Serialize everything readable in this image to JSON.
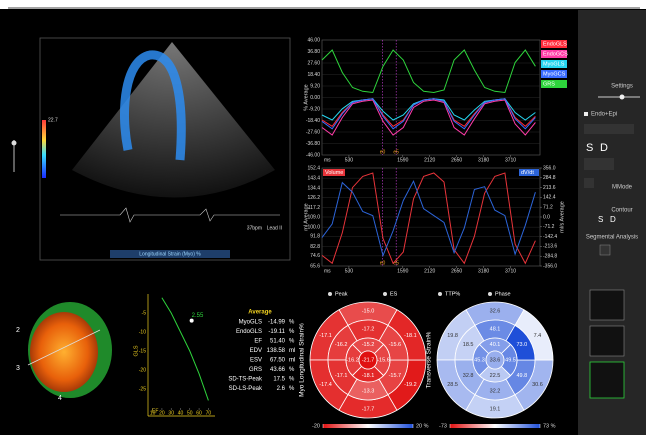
{
  "sidebar": {
    "settings": "Settings",
    "endo_epi": "Endo+Epi",
    "tool_letters": [
      "S",
      "D",
      "S",
      "D"
    ],
    "mmode": "MMode",
    "contour": "Contour",
    "segmental": "Segmental Analysis"
  },
  "echo": {
    "caption": "Longitudinal Strain (Myo) %",
    "scale_max": "22.7",
    "heart_rate": "37bpm",
    "lead": "Lead II"
  },
  "model_labels": [
    "2",
    "3",
    "4"
  ],
  "average_table": {
    "title": "Average",
    "rows": [
      [
        "MyoGLS",
        "-14.99",
        "%"
      ],
      [
        "EndoGLS",
        "-19.11",
        "%"
      ],
      [
        "EF",
        "51.40",
        "%"
      ],
      [
        "EDV",
        "138.58",
        "ml"
      ],
      [
        "ESV",
        "67.50",
        "ml"
      ],
      [
        "GRS",
        "43.66",
        "%"
      ],
      [
        "SD-TS-Peak",
        "17.5",
        "%"
      ],
      [
        "SD-LS-Peak",
        "2.6",
        "%"
      ]
    ]
  },
  "display_modes": [
    "Peak",
    "ES",
    "TTP%",
    "Phase"
  ],
  "chart_data": [
    {
      "type": "line",
      "y_label": "% Average",
      "x_unit": "ms",
      "x": [
        0,
        200,
        400,
        600,
        800,
        1000,
        1200,
        1400,
        1600,
        1800,
        2000,
        2200,
        2400,
        2600,
        2800,
        3000,
        3200,
        3400,
        3600,
        3800,
        4000,
        4200
      ],
      "xlim": [
        0,
        4290
      ],
      "xticks": [
        530,
        1590,
        2120,
        2650,
        3180,
        3710
      ],
      "ylim": [
        -46,
        46
      ],
      "yticks": [
        {
          "value": 46,
          "label": "46.00"
        },
        {
          "value": 36.8,
          "label": "36.80"
        },
        {
          "value": 27.6,
          "label": "27.60"
        },
        {
          "value": 18.4,
          "label": "18.40"
        },
        {
          "value": 9.2,
          "label": "9.20"
        },
        {
          "value": 0,
          "label": "0.00"
        },
        {
          "value": -9.2,
          "label": "-9.20"
        },
        {
          "value": -18.4,
          "label": "-18.40"
        },
        {
          "value": -27.6,
          "label": "-27.60"
        },
        {
          "value": -36.8,
          "label": "-36.80"
        },
        {
          "value": -46,
          "label": "-46.00"
        }
      ],
      "markers": [
        {
          "label": "e0",
          "x": 1190
        },
        {
          "label": "e5",
          "x": 1460
        }
      ],
      "series": [
        {
          "name": "EndoGLS",
          "color": "#ff2a3a",
          "values": [
            -18,
            -23,
            -12,
            -4,
            -2,
            -1,
            -14,
            -23,
            -18,
            -6,
            -2,
            -1,
            -3,
            -18,
            -23,
            -13,
            -4,
            -2,
            -1,
            -16,
            -23,
            -15
          ]
        },
        {
          "name": "EndoGCS",
          "color": "#ff3ca8",
          "values": [
            -24,
            -30,
            -16,
            -5,
            -3,
            -2,
            -19,
            -30,
            -24,
            -8,
            -3,
            -2,
            -4,
            -24,
            -30,
            -17,
            -5,
            -3,
            -2,
            -21,
            -30,
            -20
          ]
        },
        {
          "name": "MyoGLS",
          "color": "#26d6f0",
          "values": [
            -14,
            -18,
            -9,
            -3,
            -2,
            -1,
            -11,
            -18,
            -14,
            -5,
            -2,
            -1,
            -2,
            -14,
            -18,
            -10,
            -3,
            -2,
            -1,
            -12,
            -18,
            -12
          ]
        },
        {
          "name": "MyoGCS",
          "color": "#3a6cff",
          "values": [
            -19,
            -25,
            -13,
            -4,
            -2,
            -1,
            -15,
            -25,
            -19,
            -6,
            -2,
            -1,
            -3,
            -19,
            -25,
            -14,
            -4,
            -2,
            -1,
            -17,
            -25,
            -16
          ]
        },
        {
          "name": "GRS",
          "color": "#2ed43c",
          "values": [
            30,
            38,
            20,
            8,
            5,
            4,
            25,
            38,
            30,
            12,
            5,
            4,
            6,
            30,
            38,
            22,
            8,
            5,
            4,
            28,
            38,
            25
          ]
        }
      ]
    },
    {
      "type": "line",
      "y_label": "ml Average",
      "y2_label": "ml/s Average",
      "x_unit": "ms",
      "x": [
        0,
        200,
        400,
        600,
        800,
        1000,
        1200,
        1400,
        1600,
        1800,
        2000,
        2200,
        2400,
        2600,
        2800,
        3000,
        3200,
        3400,
        3600,
        3800,
        4000,
        4200
      ],
      "xlim": [
        0,
        4290
      ],
      "xticks": [
        530,
        1590,
        2120,
        2650,
        3180,
        3710
      ],
      "ylim": [
        65.6,
        152.4
      ],
      "yticks": [
        152.4,
        143.4,
        134.4,
        126.2,
        117.2,
        {
          "value": 109,
          "label": "109.0"
        },
        {
          "value": 100,
          "label": "100.0"
        },
        91.8,
        82.8,
        74.6,
        65.6
      ],
      "y2lim": [
        -356,
        356
      ],
      "y2ticks": [
        {
          "value": 356,
          "label": "356.0"
        },
        284.8,
        213.6,
        142.4,
        71.2,
        {
          "value": 0,
          "label": "0.0"
        },
        -71.2,
        -142.4,
        -213.6,
        -284.8,
        {
          "value": -356,
          "label": "-356.0"
        }
      ],
      "markers": [
        {
          "label": "e0",
          "x": 1190
        },
        {
          "label": "e5",
          "x": 1460
        }
      ],
      "series": [
        {
          "name": "Volume",
          "color": "#e8343a",
          "values": [
            75,
            68,
            95,
            135,
            145,
            148,
            90,
            68,
            78,
            125,
            145,
            148,
            140,
            80,
            68,
            92,
            130,
            145,
            148,
            85,
            68,
            88
          ]
        },
        {
          "name": "dV/dt",
          "color": "#2c64d8",
          "axis": "y2",
          "values": [
            -150,
            -50,
            250,
            180,
            40,
            10,
            -280,
            -100,
            120,
            260,
            60,
            10,
            -40,
            -260,
            -80,
            200,
            220,
            50,
            10,
            -270,
            -60,
            180
          ]
        }
      ]
    },
    {
      "type": "line",
      "x_label": "EF",
      "y_label": "GLS",
      "x": [
        20,
        30,
        40,
        50,
        60,
        70
      ],
      "xlim": [
        5,
        75
      ],
      "xticks": [
        10,
        20,
        30,
        40,
        50,
        60,
        70
      ],
      "ylim": [
        -30,
        0
      ],
      "yticks": [
        -5,
        -10,
        -15,
        -20,
        -25
      ],
      "point": {
        "x": 52,
        "y": -7,
        "label": "2.55"
      },
      "series": [
        {
          "color": "#2ed43c",
          "values": [
            -1,
            -5,
            -10,
            -15,
            -21,
            -28
          ]
        }
      ]
    },
    {
      "type": "bullseye",
      "title": "Myo Longitudinal Strain%",
      "clim": [
        -20,
        20
      ],
      "scale_ticks": [
        -20,
        {
          "value": 20,
          "label": "20 %"
        }
      ],
      "values": [
        -15,
        -17.1,
        -17.4,
        -17.7,
        -19.2,
        -18.1,
        -17.2,
        -16.2,
        -17.1,
        -13.3,
        -15.7,
        -15.6,
        -15.2,
        -16.2,
        -18.1,
        -15.6,
        -21.7
      ],
      "value_labels": [
        "-15.0",
        "-17.1",
        "-17.4",
        "-17.7",
        "-19.2",
        "-18.1",
        "-17.2",
        "-16.2",
        "-17.1",
        "-13.3",
        "-15.7",
        "-15.6",
        "-15.2",
        "-16.2",
        "-18.1",
        "-15.6",
        "-21.7"
      ]
    },
    {
      "type": "bullseye",
      "title": "Transverse Strain%",
      "clim": [
        -73,
        73
      ],
      "scale_ticks": [
        -73,
        {
          "value": 73,
          "label": "73 %"
        }
      ],
      "values": [
        32.6,
        19.8,
        28.5,
        19.1,
        30.6,
        7.4,
        48.1,
        18.5,
        32.8,
        32.2,
        49.8,
        73,
        40.1,
        45.3,
        22.5,
        49.5,
        33.6
      ],
      "value_labels": [
        "32.6",
        "19.8",
        "28.5",
        "19.1",
        "30.6",
        "7.4",
        "48.1",
        "18.5",
        "32.8",
        "32.2",
        "49.8",
        "73.0",
        "40.1",
        "45.3",
        "22.5",
        "49.5",
        "33.6"
      ]
    }
  ]
}
